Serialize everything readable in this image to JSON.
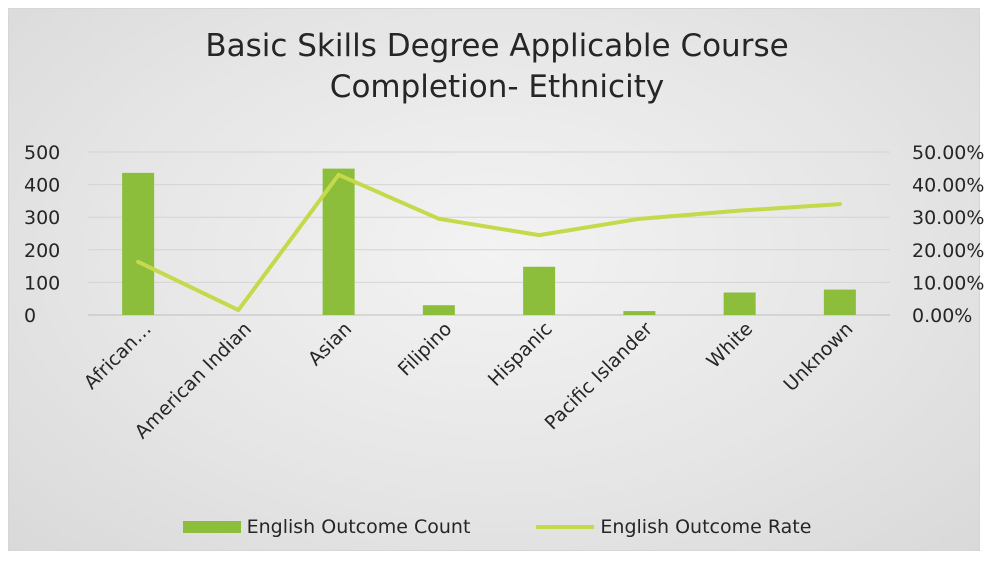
{
  "chart_data": {
    "type": "bar+line",
    "title": "Basic Skills Degree Applicable Course Completion- Ethnicity",
    "title_lines": [
      "Basic Skills Degree Applicable Course",
      "Completion- Ethnicity"
    ],
    "categories": [
      "African…",
      "American Indian",
      "Asian",
      "Filipino",
      "Hispanic",
      "Pacific Islander",
      "White",
      "Unknown"
    ],
    "series": [
      {
        "name": "English Outcome Count",
        "type": "bar",
        "axis": "left",
        "color": "#8cbe3c",
        "values": [
          436,
          0,
          449,
          30,
          148,
          12,
          69,
          78
        ]
      },
      {
        "name": "English Outcome Rate",
        "type": "line",
        "axis": "right",
        "color": "#c5d94a",
        "values": [
          16.3,
          1.5,
          43.0,
          29.5,
          24.5,
          29.5,
          32.0,
          34.0
        ]
      }
    ],
    "y_left": {
      "min": 0,
      "max": 500,
      "ticks": [
        "0",
        "100",
        "200",
        "300",
        "400",
        "500"
      ]
    },
    "y_right": {
      "min": 0,
      "max": 50,
      "ticks": [
        "0.00%",
        "10.00%",
        "20.00%",
        "30.00%",
        "40.00%",
        "50.00%"
      ]
    },
    "grid": true,
    "legend_position": "bottom"
  }
}
